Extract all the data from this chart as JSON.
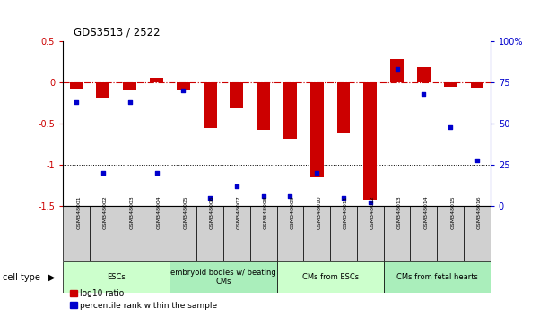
{
  "title": "GDS3513 / 2522",
  "samples": [
    "GSM348001",
    "GSM348002",
    "GSM348003",
    "GSM348004",
    "GSM348005",
    "GSM348006",
    "GSM348007",
    "GSM348008",
    "GSM348009",
    "GSM348010",
    "GSM348011",
    "GSM348012",
    "GSM348013",
    "GSM348014",
    "GSM348015",
    "GSM348016"
  ],
  "log10_ratio": [
    -0.08,
    -0.18,
    -0.1,
    0.06,
    -0.1,
    -0.55,
    -0.32,
    -0.57,
    -0.68,
    -1.15,
    -0.62,
    -1.42,
    0.28,
    0.18,
    -0.05,
    -0.07
  ],
  "percentile_rank": [
    63,
    20,
    63,
    20,
    70,
    5,
    12,
    6,
    6,
    20,
    5,
    2,
    83,
    68,
    48,
    28
  ],
  "ylim_left": [
    -1.5,
    0.5
  ],
  "ylim_right": [
    0,
    100
  ],
  "bar_color": "#CC0000",
  "dot_color": "#0000CC",
  "right_ticks": [
    0,
    25,
    50,
    75,
    100
  ],
  "right_tick_labels": [
    "0",
    "25",
    "50",
    "75",
    "100%"
  ],
  "left_ticks": [
    -1.5,
    -1.0,
    -0.5,
    0.0,
    0.5
  ],
  "left_tick_labels": [
    "-1.5",
    "-1",
    "-0.5",
    "0",
    "0.5"
  ],
  "group_boundaries": [
    0,
    4,
    8,
    12,
    16
  ],
  "group_labels": [
    "ESCs",
    "embryoid bodies w/ beating\nCMs",
    "CMs from ESCs",
    "CMs from fetal hearts"
  ],
  "group_colors": [
    "#ccffcc",
    "#aaeebb",
    "#ccffcc",
    "#aaeebb"
  ],
  "cell_type_label": "cell type",
  "legend_labels": [
    "log10 ratio",
    "percentile rank within the sample"
  ],
  "sample_box_color": "#d0d0d0",
  "bar_width": 0.5
}
